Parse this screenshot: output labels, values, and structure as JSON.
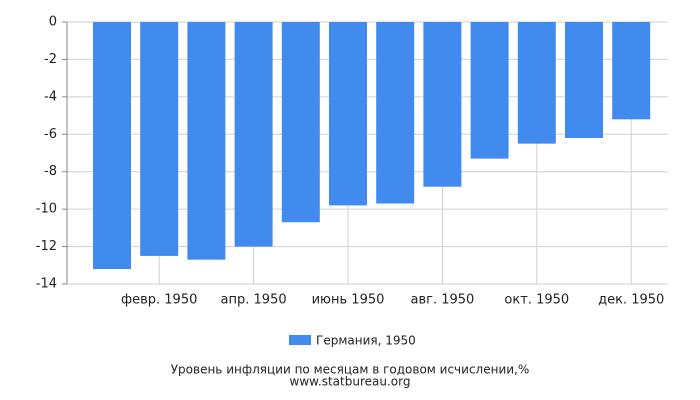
{
  "chart_data": {
    "type": "bar",
    "title": "Уровень инфляции по месяцам в годовом исчислении,%",
    "subtitle": "www.statbureau.org",
    "categories": [
      null,
      "февр. 1950",
      null,
      "апр. 1950",
      null,
      "июнь 1950",
      null,
      "авг. 1950",
      null,
      "окт. 1950",
      null,
      "дек. 1950"
    ],
    "series": [
      {
        "name": "Германия, 1950",
        "color": "#418aee",
        "values": [
          -13.2,
          -12.5,
          -12.7,
          -12.0,
          -10.7,
          -9.8,
          -9.7,
          -8.8,
          -7.3,
          -6.5,
          -6.2,
          -5.2
        ]
      }
    ],
    "ylim": [
      -14,
      0
    ],
    "yticks": [
      0,
      -2,
      -4,
      -6,
      -8,
      -10,
      -12,
      -14
    ],
    "grid": true
  }
}
